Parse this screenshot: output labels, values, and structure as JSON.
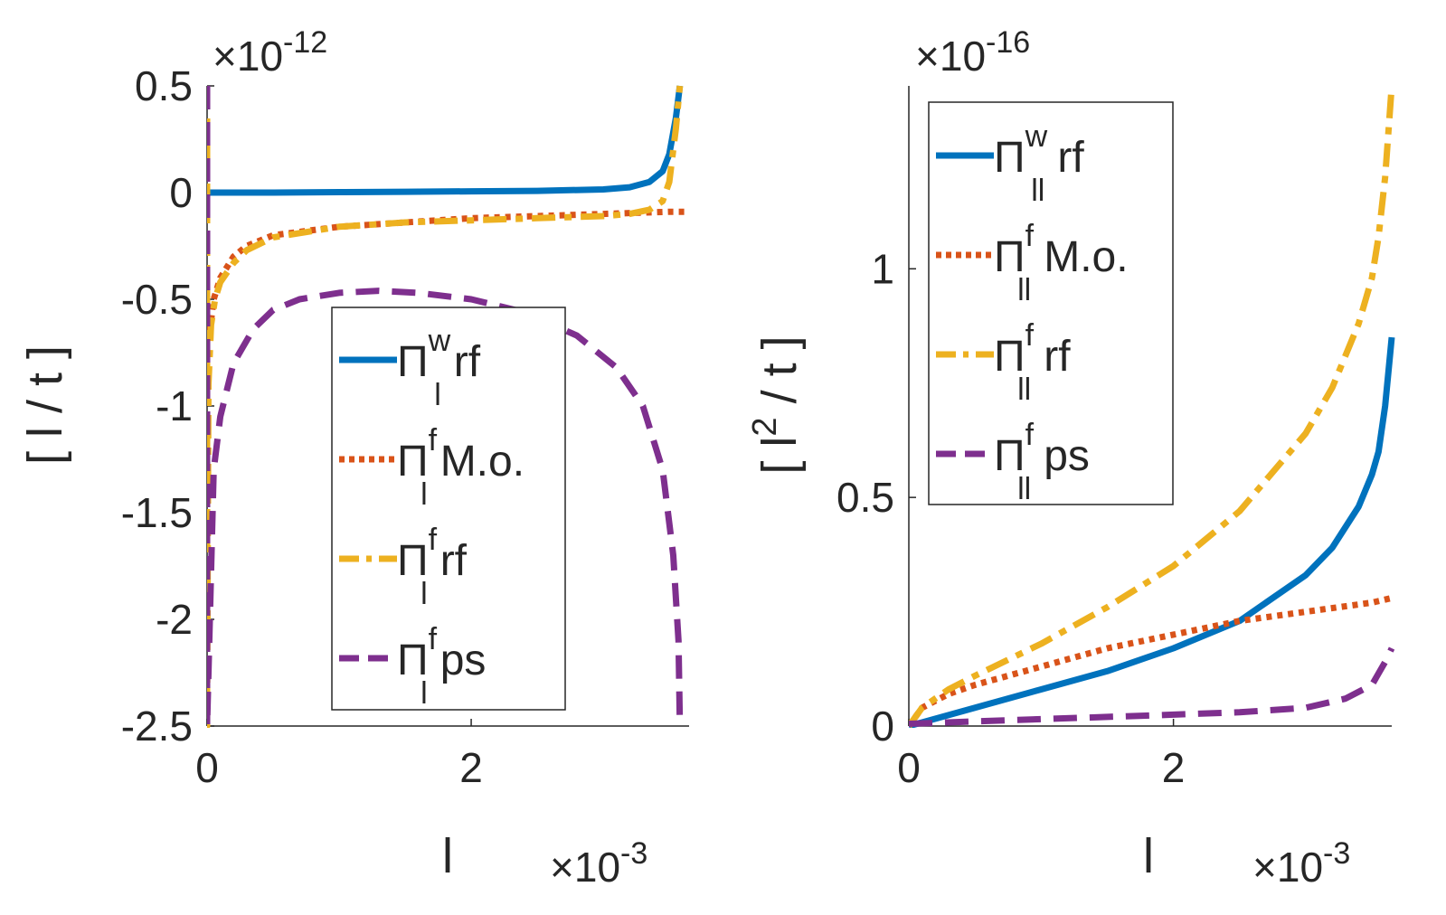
{
  "chart_data": [
    {
      "type": "line",
      "xlabel": "l",
      "ylabel": "[ l / t ]",
      "x_multiplier": "×10",
      "x_multiplier_exp": "-3",
      "y_multiplier": "×10",
      "y_multiplier_exp": "-12",
      "xlim": [
        0,
        3.65
      ],
      "ylim": [
        -2.5,
        0.5
      ],
      "xticks": [
        {
          "v": 0,
          "label": "0"
        },
        {
          "v": 2,
          "label": "2"
        }
      ],
      "yticks": [
        {
          "v": 0.5,
          "label": "0.5"
        },
        {
          "v": 0,
          "label": "0"
        },
        {
          "v": -0.5,
          "label": "-0.5"
        },
        {
          "v": -1,
          "label": "-1"
        },
        {
          "v": -1.5,
          "label": "-1.5"
        },
        {
          "v": -2,
          "label": "-2"
        },
        {
          "v": -2.5,
          "label": "-2.5"
        }
      ],
      "legend": {
        "placement": "center-right",
        "entries": [
          {
            "symbol": "Π",
            "sup": "w",
            "sub": "l",
            "text": "rf",
            "color": "#0072BD",
            "style": "solid"
          },
          {
            "symbol": "Π",
            "sup": "f",
            "sub": "l",
            "text": "M.o.",
            "color": "#D95319",
            "style": "dotted"
          },
          {
            "symbol": "Π",
            "sup": "f",
            "sub": "l",
            "text": "rf",
            "color": "#EDB120",
            "style": "dashdot"
          },
          {
            "symbol": "Π",
            "sup": "f",
            "sub": "l",
            "text": "ps",
            "color": "#7E2F8E",
            "style": "dashed"
          }
        ]
      },
      "series": [
        {
          "name": "Π_l^w rf",
          "color": "#0072BD",
          "style": "solid",
          "x": [
            0,
            0.5,
            1,
            1.5,
            2,
            2.5,
            3,
            3.2,
            3.35,
            3.45,
            3.5,
            3.55,
            3.58
          ],
          "y": [
            0,
            0,
            0.002,
            0.004,
            0.006,
            0.008,
            0.015,
            0.025,
            0.05,
            0.1,
            0.18,
            0.35,
            0.5
          ]
        },
        {
          "name": "Π_l^f M.o.",
          "color": "#D95319",
          "style": "dotted",
          "x": [
            0.02,
            0.05,
            0.1,
            0.2,
            0.3,
            0.5,
            1,
            1.5,
            2,
            2.5,
            3,
            3.5,
            3.65
          ],
          "y": [
            -0.65,
            -0.5,
            -0.4,
            -0.3,
            -0.25,
            -0.2,
            -0.16,
            -0.14,
            -0.12,
            -0.11,
            -0.1,
            -0.09,
            -0.09
          ]
        },
        {
          "name": "Π_l^f rf",
          "color": "#EDB120",
          "style": "dashdot",
          "x": [
            0,
            0,
            0.01,
            0.03,
            0.06,
            0.1,
            0.2,
            0.3,
            0.5,
            1,
            1.5,
            2,
            2.5,
            3,
            3.2,
            3.35,
            3.45,
            3.5,
            3.55,
            3.58
          ],
          "y": [
            0.5,
            -2.5,
            -0.9,
            -0.62,
            -0.5,
            -0.42,
            -0.33,
            -0.27,
            -0.21,
            -0.16,
            -0.14,
            -0.13,
            -0.12,
            -0.11,
            -0.1,
            -0.08,
            -0.04,
            0.05,
            0.3,
            0.5
          ]
        },
        {
          "name": "Π_l^f ps",
          "color": "#7E2F8E",
          "style": "dashed",
          "x": [
            0,
            0,
            0.05,
            0.1,
            0.2,
            0.35,
            0.5,
            0.7,
            1,
            1.3,
            1.6,
            2,
            2.4,
            2.8,
            3.1,
            3.3,
            3.45,
            3.53,
            3.57,
            3.58
          ],
          "y": [
            0.5,
            -2.5,
            -1.3,
            -1.05,
            -0.8,
            -0.64,
            -0.55,
            -0.5,
            -0.47,
            -0.46,
            -0.47,
            -0.5,
            -0.56,
            -0.67,
            -0.82,
            -1.0,
            -1.3,
            -1.7,
            -2.1,
            -2.5
          ]
        }
      ]
    },
    {
      "type": "line",
      "xlabel": "l",
      "ylabel": "[ l^2 / t ]",
      "ylabel_main": "[ l",
      "ylabel_exp": "2",
      "ylabel_rest": " / t ]",
      "x_multiplier": "×10",
      "x_multiplier_exp": "-3",
      "y_multiplier": "×10",
      "y_multiplier_exp": "-16",
      "xlim": [
        0,
        3.65
      ],
      "ylim": [
        0,
        1.4
      ],
      "xticks": [
        {
          "v": 0,
          "label": "0"
        },
        {
          "v": 2,
          "label": "2"
        }
      ],
      "yticks": [
        {
          "v": 1,
          "label": "1"
        },
        {
          "v": 0.5,
          "label": "0.5"
        },
        {
          "v": 0,
          "label": "0"
        }
      ],
      "legend": {
        "placement": "top-right",
        "entries": [
          {
            "symbol": "Π",
            "sup": "w",
            "sub": "ll",
            "text": "rf",
            "color": "#0072BD",
            "style": "solid"
          },
          {
            "symbol": "Π",
            "sup": "f",
            "sub": "ll",
            "text": "M.o.",
            "color": "#D95319",
            "style": "dotted"
          },
          {
            "symbol": "Π",
            "sup": "f",
            "sub": "ll",
            "text": "rf",
            "color": "#EDB120",
            "style": "dashdot"
          },
          {
            "symbol": "Π",
            "sup": "f",
            "sub": "ll",
            "text": "ps",
            "color": "#7E2F8E",
            "style": "dashed"
          }
        ]
      },
      "series": [
        {
          "name": "Π_ll^w rf",
          "color": "#0072BD",
          "style": "solid",
          "x": [
            0,
            0.5,
            1,
            1.5,
            2,
            2.5,
            3,
            3.2,
            3.4,
            3.5,
            3.55,
            3.6,
            3.65
          ],
          "y": [
            0,
            0.04,
            0.08,
            0.12,
            0.17,
            0.23,
            0.33,
            0.39,
            0.48,
            0.55,
            0.6,
            0.7,
            0.85
          ]
        },
        {
          "name": "Π_ll^f M.o.",
          "color": "#D95319",
          "style": "dotted",
          "x": [
            0,
            0.1,
            0.3,
            0.5,
            1,
            1.5,
            2,
            2.5,
            3,
            3.5,
            3.65
          ],
          "y": [
            0,
            0.04,
            0.07,
            0.09,
            0.13,
            0.17,
            0.2,
            0.23,
            0.25,
            0.27,
            0.28
          ]
        },
        {
          "name": "Π_ll^f rf",
          "color": "#EDB120",
          "style": "dashdot",
          "x": [
            0,
            0.1,
            0.3,
            0.5,
            1,
            1.5,
            2,
            2.5,
            3,
            3.2,
            3.4,
            3.5,
            3.55,
            3.6,
            3.65
          ],
          "y": [
            0,
            0.04,
            0.08,
            0.11,
            0.18,
            0.26,
            0.35,
            0.47,
            0.64,
            0.74,
            0.88,
            0.98,
            1.07,
            1.2,
            1.4
          ]
        },
        {
          "name": "Π_ll^f ps",
          "color": "#7E2F8E",
          "style": "dashed",
          "x": [
            0,
            0.5,
            1,
            1.5,
            2,
            2.5,
            3,
            3.3,
            3.5,
            3.6,
            3.65
          ],
          "y": [
            0.005,
            0.01,
            0.015,
            0.02,
            0.025,
            0.03,
            0.04,
            0.06,
            0.09,
            0.14,
            0.17
          ]
        }
      ]
    }
  ]
}
